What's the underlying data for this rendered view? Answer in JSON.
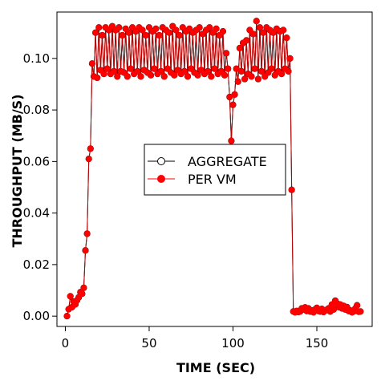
{
  "chart_data": {
    "type": "line",
    "xlabel": "TIME (SEC)",
    "ylabel": "THROUGHPUT (MB/S)",
    "xlim": [
      -5,
      183
    ],
    "ylim": [
      -0.004,
      0.118
    ],
    "xticks": [
      0,
      50,
      100,
      150
    ],
    "yticks": [
      0.0,
      0.02,
      0.04,
      0.06,
      0.08,
      0.1
    ],
    "ytick_labels": [
      "0.00",
      "0.02",
      "0.04",
      "0.06",
      "0.08",
      "0.10"
    ],
    "legend_position": "center-right",
    "colors": {
      "aggregate": "#000000",
      "per_vm": "#ff0000",
      "line": "#c00000"
    },
    "series": [
      {
        "name": "AGGREGATE",
        "marker": "open-circle",
        "x": [
          1,
          2,
          3,
          4,
          5,
          6,
          7,
          8,
          9,
          10,
          11,
          12,
          13,
          14,
          15,
          16,
          17,
          18,
          19,
          20,
          21,
          22,
          23,
          24,
          25,
          26,
          27,
          28,
          29,
          30,
          31,
          32,
          33,
          34,
          35,
          36,
          37,
          38,
          39,
          40,
          41,
          42,
          43,
          44,
          45,
          46,
          47,
          48,
          49,
          50,
          51,
          52,
          53,
          54,
          55,
          56,
          57,
          58,
          59,
          60,
          61,
          62,
          63,
          64,
          65,
          66,
          67,
          68,
          69,
          70,
          71,
          72,
          73,
          74,
          75,
          76,
          77,
          78,
          79,
          80,
          81,
          82,
          83,
          84,
          85,
          86,
          87,
          88,
          89,
          90,
          91,
          92,
          93,
          94,
          95,
          96,
          97,
          98,
          99,
          100,
          101,
          102,
          103,
          104,
          105,
          106,
          107,
          108,
          109,
          110,
          111,
          112,
          113,
          114,
          115,
          116,
          117,
          118,
          119,
          120,
          121,
          122,
          123,
          124,
          125,
          126,
          127,
          128,
          129,
          130,
          131,
          132,
          133,
          134,
          135,
          136,
          137,
          138,
          139,
          140,
          141,
          142,
          143,
          144,
          145,
          146,
          147,
          148,
          149,
          150,
          151,
          152,
          153,
          154,
          155,
          156,
          157,
          158,
          159,
          160,
          161,
          162,
          163,
          164,
          165,
          166,
          167,
          168,
          169,
          170,
          171,
          172,
          173,
          174,
          175,
          176
        ],
        "y": [
          0.0,
          0.0027,
          0.0077,
          0.0035,
          0.0056,
          0.0046,
          0.0062,
          0.0073,
          0.0093,
          0.0087,
          0.011,
          0.0255,
          0.032,
          0.061,
          0.065,
          0.098,
          0.093,
          0.11,
          0.0925,
          0.112,
          0.0955,
          0.109,
          0.094,
          0.112,
          0.096,
          0.111,
          0.094,
          0.1125,
          0.095,
          0.111,
          0.093,
          0.112,
          0.095,
          0.109,
          0.0945,
          0.1115,
          0.093,
          0.11,
          0.096,
          0.112,
          0.094,
          0.1105,
          0.095,
          0.112,
          0.093,
          0.111,
          0.0955,
          0.109,
          0.0945,
          0.112,
          0.0935,
          0.1105,
          0.096,
          0.1115,
          0.094,
          0.109,
          0.095,
          0.112,
          0.093,
          0.111,
          0.096,
          0.11,
          0.0945,
          0.1125,
          0.0935,
          0.111,
          0.0955,
          0.109,
          0.094,
          0.112,
          0.095,
          0.1105,
          0.093,
          0.1115,
          0.096,
          0.11,
          0.0945,
          0.111,
          0.0935,
          0.112,
          0.0955,
          0.1095,
          0.094,
          0.111,
          0.095,
          0.112,
          0.093,
          0.11,
          0.096,
          0.1115,
          0.094,
          0.109,
          0.095,
          0.1105,
          0.0935,
          0.102,
          0.096,
          0.085,
          0.068,
          0.082,
          0.086,
          0.096,
          0.091,
          0.104,
          0.095,
          0.106,
          0.092,
          0.107,
          0.094,
          0.111,
          0.093,
          0.1095,
          0.096,
          0.1145,
          0.092,
          0.112,
          0.095,
          0.11,
          0.093,
          0.112,
          0.0945,
          0.111,
          0.096,
          0.11,
          0.0935,
          0.1115,
          0.095,
          0.1105,
          0.094,
          0.111,
          0.096,
          0.108,
          0.095,
          0.1,
          0.049,
          0.0018,
          0.0015,
          0.002,
          0.0016,
          0.0018,
          0.003,
          0.0026,
          0.0034,
          0.002,
          0.003,
          0.0018,
          0.0022,
          0.0015,
          0.0026,
          0.0032,
          0.002,
          0.0018,
          0.0028,
          0.0016,
          0.0022,
          0.0025,
          0.003,
          0.0018,
          0.0045,
          0.0026,
          0.006,
          0.005,
          0.0035,
          0.0045,
          0.003,
          0.004,
          0.0026,
          0.0035,
          0.002,
          0.0022,
          0.0015,
          0.0018,
          0.003,
          0.0042,
          0.0017,
          0.0018
        ]
      },
      {
        "name": "PER VM",
        "marker": "filled-circle",
        "x": [
          1,
          2,
          3,
          4,
          5,
          6,
          7,
          8,
          9,
          10,
          11,
          12,
          13,
          14,
          15,
          16,
          17,
          18,
          19,
          20,
          21,
          22,
          23,
          24,
          25,
          26,
          27,
          28,
          29,
          30,
          31,
          32,
          33,
          34,
          35,
          36,
          37,
          38,
          39,
          40,
          41,
          42,
          43,
          44,
          45,
          46,
          47,
          48,
          49,
          50,
          51,
          52,
          53,
          54,
          55,
          56,
          57,
          58,
          59,
          60,
          61,
          62,
          63,
          64,
          65,
          66,
          67,
          68,
          69,
          70,
          71,
          72,
          73,
          74,
          75,
          76,
          77,
          78,
          79,
          80,
          81,
          82,
          83,
          84,
          85,
          86,
          87,
          88,
          89,
          90,
          91,
          92,
          93,
          94,
          95,
          96,
          97,
          98,
          99,
          100,
          101,
          102,
          103,
          104,
          105,
          106,
          107,
          108,
          109,
          110,
          111,
          112,
          113,
          114,
          115,
          116,
          117,
          118,
          119,
          120,
          121,
          122,
          123,
          124,
          125,
          126,
          127,
          128,
          129,
          130,
          131,
          132,
          133,
          134,
          135,
          136,
          137,
          138,
          139,
          140,
          141,
          142,
          143,
          144,
          145,
          146,
          147,
          148,
          149,
          150,
          151,
          152,
          153,
          154,
          155,
          156,
          157,
          158,
          159,
          160,
          161,
          162,
          163,
          164,
          165,
          166,
          167,
          168,
          169,
          170,
          171,
          172,
          173,
          174,
          175,
          176
        ],
        "y": [
          0.0,
          0.0027,
          0.0077,
          0.0035,
          0.0056,
          0.0046,
          0.0062,
          0.0073,
          0.0093,
          0.0087,
          0.011,
          0.0255,
          0.032,
          0.061,
          0.065,
          0.098,
          0.093,
          0.11,
          0.0925,
          0.112,
          0.0955,
          0.109,
          0.094,
          0.112,
          0.096,
          0.111,
          0.094,
          0.1125,
          0.095,
          0.111,
          0.093,
          0.112,
          0.095,
          0.109,
          0.0945,
          0.1115,
          0.093,
          0.11,
          0.096,
          0.112,
          0.094,
          0.1105,
          0.095,
          0.112,
          0.093,
          0.111,
          0.0955,
          0.109,
          0.0945,
          0.112,
          0.0935,
          0.1105,
          0.096,
          0.1115,
          0.094,
          0.109,
          0.095,
          0.112,
          0.093,
          0.111,
          0.096,
          0.11,
          0.0945,
          0.1125,
          0.0935,
          0.111,
          0.0955,
          0.109,
          0.094,
          0.112,
          0.095,
          0.1105,
          0.093,
          0.1115,
          0.096,
          0.11,
          0.0945,
          0.111,
          0.0935,
          0.112,
          0.0955,
          0.1095,
          0.094,
          0.111,
          0.095,
          0.112,
          0.093,
          0.11,
          0.096,
          0.1115,
          0.094,
          0.109,
          0.095,
          0.1105,
          0.0935,
          0.102,
          0.096,
          0.085,
          0.068,
          0.082,
          0.086,
          0.096,
          0.091,
          0.104,
          0.095,
          0.106,
          0.092,
          0.107,
          0.094,
          0.111,
          0.093,
          0.1095,
          0.096,
          0.1145,
          0.092,
          0.112,
          0.095,
          0.11,
          0.093,
          0.112,
          0.0945,
          0.111,
          0.096,
          0.11,
          0.0935,
          0.1115,
          0.095,
          0.1105,
          0.094,
          0.111,
          0.096,
          0.108,
          0.095,
          0.1,
          0.049,
          0.0018,
          0.0015,
          0.002,
          0.0016,
          0.0018,
          0.003,
          0.0026,
          0.0034,
          0.002,
          0.003,
          0.0018,
          0.0022,
          0.0015,
          0.0026,
          0.0032,
          0.002,
          0.0018,
          0.0028,
          0.0016,
          0.0022,
          0.0025,
          0.003,
          0.0018,
          0.0045,
          0.0026,
          0.006,
          0.005,
          0.0035,
          0.0045,
          0.003,
          0.004,
          0.0026,
          0.0035,
          0.002,
          0.0022,
          0.0015,
          0.0018,
          0.003,
          0.0042,
          0.0017,
          0.0018
        ]
      }
    ]
  }
}
